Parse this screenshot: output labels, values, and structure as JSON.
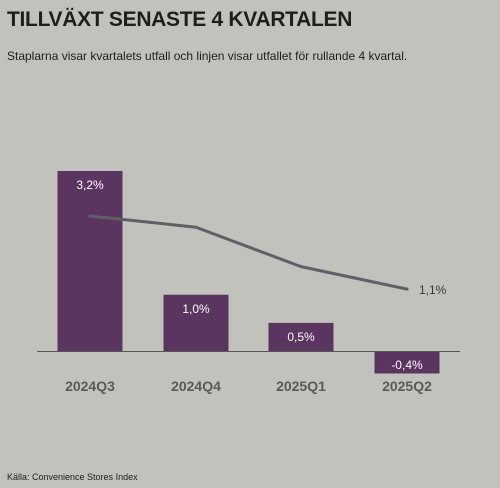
{
  "title": "TILLVÄXT SENASTE 4 KVARTALEN",
  "subtitle": "Staplarna visar kvartalets utfall och linjen visar utfallet för rullande 4 kvartal.",
  "source": "Källa: Convenience Stores Index",
  "colors": {
    "background": "#c0c2bb",
    "bar": "#5a3560",
    "bar_label": "#ffffff",
    "line": "#5f5f68",
    "axis": "#555555",
    "category_label": "#5a5a5a",
    "line_label": "#3a3a3a"
  },
  "chart_data": {
    "type": "bar",
    "categories": [
      "2024Q3",
      "2024Q4",
      "2025Q1",
      "2025Q2"
    ],
    "series": [
      {
        "type": "bar",
        "values": [
          3.2,
          1.0,
          0.5,
          -0.4
        ],
        "labels": [
          "3,2%",
          "1,0%",
          "0,5%",
          "-0,4%"
        ]
      },
      {
        "type": "line",
        "values": [
          2.4,
          2.2,
          1.5,
          1.1
        ],
        "labels": [
          "",
          "",
          "",
          "1,1%"
        ]
      }
    ],
    "ylim": [
      -0.5,
      3.3
    ],
    "grid": false,
    "legend": "none"
  }
}
